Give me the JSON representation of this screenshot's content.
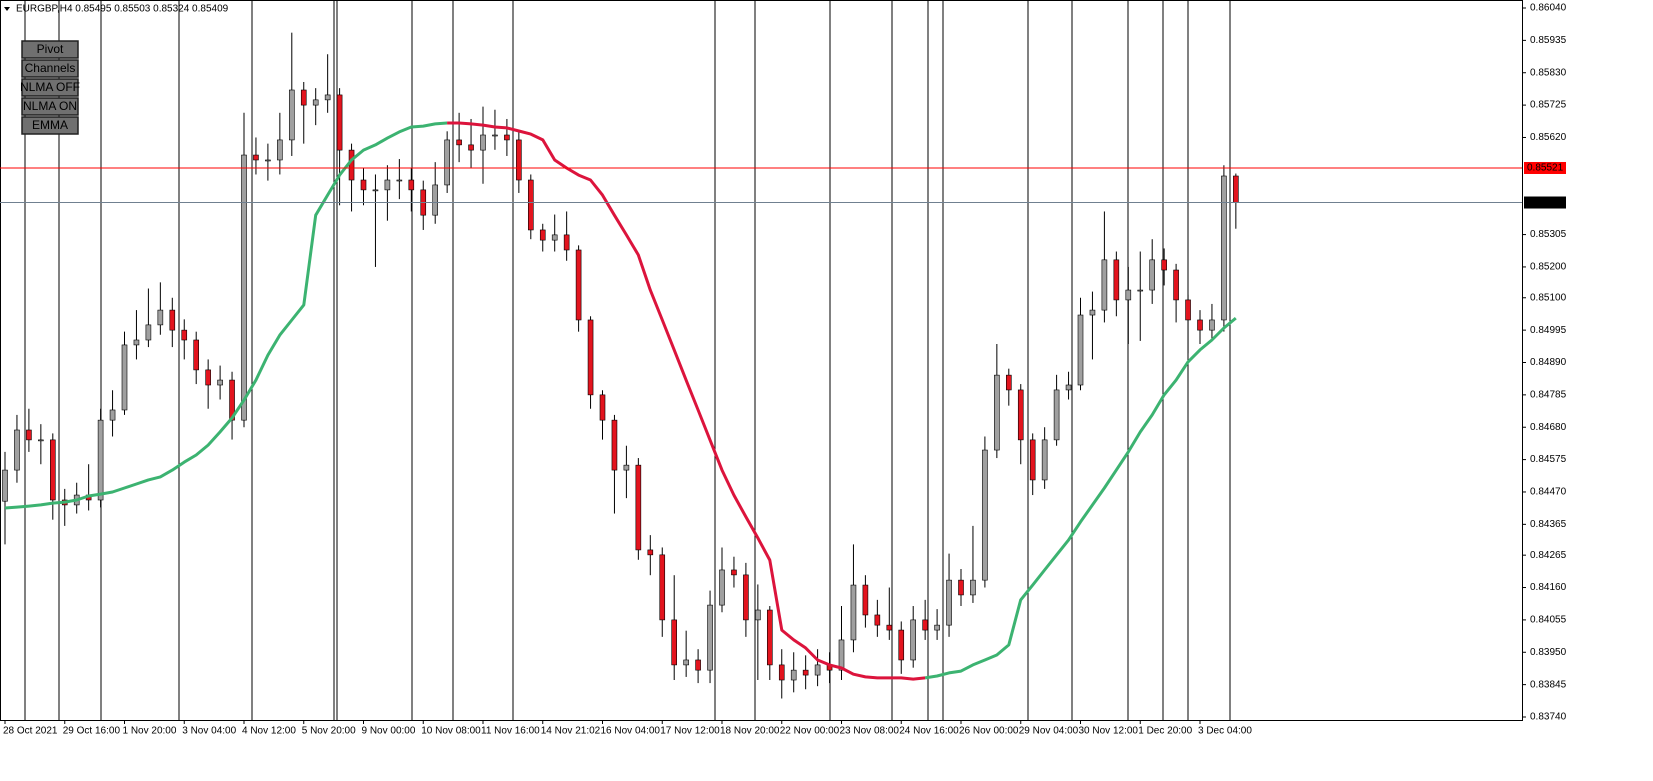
{
  "chart_data": {
    "type": "candlestick",
    "title": "EURGBP,H4 0.85495 0.85503 0.85324 0.85409",
    "categories": [
      "28 Oct 2021",
      null,
      null,
      null,
      null,
      "29 Oct 16:00",
      null,
      null,
      null,
      null,
      "1 Nov 20:00",
      null,
      null,
      null,
      null,
      "3 Nov 04:00",
      null,
      null,
      null,
      null,
      "4 Nov 12:00",
      null,
      null,
      null,
      null,
      "5 Nov 20:00",
      null,
      null,
      null,
      null,
      "9 Nov 00:00",
      null,
      null,
      null,
      null,
      "10 Nov 08:00",
      null,
      null,
      null,
      null,
      "11 Nov 16:00",
      null,
      null,
      null,
      null,
      "14 Nov 21:02",
      null,
      null,
      null,
      null,
      "16 Nov 04:00",
      null,
      null,
      null,
      null,
      "17 Nov 12:00",
      null,
      null,
      null,
      null,
      "18 Nov 20:00",
      null,
      null,
      null,
      null,
      "22 Nov 00:00",
      null,
      null,
      null,
      null,
      "23 Nov 08:00",
      null,
      null,
      null,
      null,
      "24 Nov 16:00",
      null,
      null,
      null,
      null,
      "26 Nov 00:00",
      null,
      null,
      null,
      null,
      "29 Nov 04:00",
      null,
      null,
      null,
      null,
      "30 Nov 12:00",
      null,
      null,
      null,
      null,
      "1 Dec 20:00",
      null,
      null,
      null,
      null,
      "3 Dec 04:00",
      null,
      null,
      null
    ],
    "open": [
      0.8444,
      0.84541,
      0.84671,
      0.84639,
      0.84639,
      0.84444,
      0.84428,
      0.8446,
      0.84444,
      0.84703,
      0.84736,
      0.84947,
      0.84963,
      0.85012,
      0.8506,
      0.84995,
      0.84963,
      0.84866,
      0.84817,
      0.84833,
      0.84703,
      0.85563,
      0.85547,
      0.85547,
      0.85612,
      0.85774,
      0.85725,
      0.85742,
      0.85758,
      0.85579,
      0.85482,
      0.8545,
      0.8545,
      0.85482,
      0.85482,
      0.8545,
      0.85368,
      0.85466,
      0.85612,
      0.85596,
      0.85579,
      0.85628,
      0.85628,
      0.85612,
      0.85482,
      0.8532,
      0.85287,
      0.85304,
      0.85255,
      0.85028,
      0.84785,
      0.84703,
      0.84541,
      0.84557,
      0.84282,
      0.84266,
      0.84055,
      0.83909,
      0.83925,
      0.83892,
      0.84103,
      0.84217,
      0.84201,
      0.84055,
      0.84087,
      0.83909,
      0.8386,
      0.83892,
      0.83876,
      0.83909,
      0.83892,
      0.8399,
      0.84168,
      0.84071,
      0.84038,
      0.84022,
      0.83925,
      0.84055,
      0.84022,
      0.84038,
      0.84184,
      0.84136,
      0.84184,
      0.84606,
      0.84849,
      0.84801,
      0.84639,
      0.84509,
      0.84639,
      0.84801,
      0.84817,
      0.85044,
      0.8506,
      0.85223,
      0.85093,
      0.85125,
      0.85125,
      0.85223,
      0.8519,
      0.85093,
      0.85028,
      0.84995,
      0.85028,
      0.85495
    ],
    "high": [
      0.846,
      0.8472,
      0.8474,
      0.8469,
      0.8466,
      0.8448,
      0.845,
      0.8456,
      0.8474,
      0.848,
      0.8499,
      0.8506,
      0.8513,
      0.8515,
      0.851,
      0.8503,
      0.8499,
      0.849,
      0.8488,
      0.8486,
      0.857,
      0.8562,
      0.856,
      0.857,
      0.8596,
      0.858,
      0.8578,
      0.8589,
      0.8578,
      0.856,
      0.8552,
      0.855,
      0.8553,
      0.8555,
      0.8552,
      0.8548,
      0.8554,
      0.8564,
      0.857,
      0.8568,
      0.8572,
      0.8571,
      0.8568,
      0.8564,
      0.855,
      0.8534,
      0.8537,
      0.8538,
      0.8527,
      0.8504,
      0.848,
      0.8472,
      0.8462,
      0.8458,
      0.8433,
      0.8429,
      0.842,
      0.8402,
      0.8396,
      0.8415,
      0.8429,
      0.8426,
      0.8424,
      0.8417,
      0.841,
      0.8396,
      0.8395,
      0.8394,
      0.8396,
      0.8395,
      0.841,
      0.843,
      0.842,
      0.8412,
      0.8416,
      0.8405,
      0.841,
      0.8412,
      0.8409,
      0.8427,
      0.8422,
      0.8436,
      0.8465,
      0.8495,
      0.8487,
      0.8482,
      0.8466,
      0.8468,
      0.8485,
      0.8486,
      0.851,
      0.8512,
      0.8538,
      0.8525,
      0.852,
      0.8525,
      0.8529,
      0.8526,
      0.8521,
      0.8511,
      0.8506,
      0.8508,
      0.8553,
      0.85503
    ],
    "low": [
      0.843,
      0.845,
      0.846,
      0.8456,
      0.8438,
      0.8436,
      0.844,
      0.8441,
      0.8442,
      0.8465,
      0.8472,
      0.849,
      0.8494,
      0.8498,
      0.8494,
      0.849,
      0.8482,
      0.8474,
      0.8477,
      0.8464,
      0.8468,
      0.855,
      0.8548,
      0.855,
      0.8556,
      0.856,
      0.8566,
      0.857,
      0.854,
      0.8538,
      0.854,
      0.852,
      0.8535,
      0.8542,
      0.8538,
      0.8532,
      0.8534,
      0.8544,
      0.8554,
      0.8552,
      0.8547,
      0.8558,
      0.8556,
      0.8544,
      0.8529,
      0.8525,
      0.8525,
      0.8522,
      0.8499,
      0.8474,
      0.8464,
      0.844,
      0.8445,
      0.8425,
      0.842,
      0.84,
      0.8386,
      0.8387,
      0.8385,
      0.8385,
      0.8408,
      0.8416,
      0.84,
      0.8386,
      0.8386,
      0.838,
      0.8382,
      0.8383,
      0.8384,
      0.8385,
      0.8386,
      0.8395,
      0.8403,
      0.84,
      0.8399,
      0.8388,
      0.839,
      0.8399,
      0.8399,
      0.84,
      0.841,
      0.8411,
      0.8416,
      0.8458,
      0.8475,
      0.8456,
      0.8446,
      0.8448,
      0.8462,
      0.8477,
      0.848,
      0.849,
      0.8502,
      0.8504,
      0.8495,
      0.8496,
      0.8508,
      0.8514,
      0.8502,
      0.8492,
      0.8495,
      0.8496,
      0.8499,
      0.85324
    ],
    "close": [
      0.84541,
      0.84671,
      0.84639,
      0.84639,
      0.84444,
      0.84428,
      0.8446,
      0.84444,
      0.84703,
      0.84736,
      0.84947,
      0.84963,
      0.85012,
      0.8506,
      0.84995,
      0.84963,
      0.84866,
      0.84817,
      0.84833,
      0.84703,
      0.85563,
      0.85547,
      0.85547,
      0.85612,
      0.85774,
      0.85725,
      0.85742,
      0.85758,
      0.85579,
      0.85482,
      0.8545,
      0.8545,
      0.85482,
      0.85482,
      0.8545,
      0.85368,
      0.85466,
      0.85612,
      0.85596,
      0.85579,
      0.85628,
      0.85628,
      0.85612,
      0.85482,
      0.8532,
      0.85287,
      0.85304,
      0.85255,
      0.85028,
      0.84785,
      0.84703,
      0.84541,
      0.84557,
      0.84282,
      0.84266,
      0.84055,
      0.83909,
      0.83925,
      0.83892,
      0.84103,
      0.84217,
      0.84201,
      0.84055,
      0.84087,
      0.83909,
      0.8386,
      0.83892,
      0.83876,
      0.83909,
      0.83892,
      0.8399,
      0.84168,
      0.84071,
      0.84038,
      0.84022,
      0.83925,
      0.84055,
      0.84022,
      0.84038,
      0.84184,
      0.84136,
      0.84184,
      0.84606,
      0.84849,
      0.84801,
      0.84639,
      0.84509,
      0.84639,
      0.84801,
      0.84817,
      0.85044,
      0.8506,
      0.85223,
      0.85093,
      0.85125,
      0.85125,
      0.85223,
      0.8519,
      0.85093,
      0.85028,
      0.84995,
      0.85028,
      0.85495,
      0.85409
    ],
    "up_color": "#a0a0a0",
    "down_color": "#e3141e",
    "series": [
      {
        "color": "#3cb371",
        "values": [
          0.84418,
          0.84421,
          0.84424,
          0.84428,
          0.84434,
          0.84437,
          0.84444,
          0.84457,
          0.84463,
          0.8447,
          0.84483,
          0.84496,
          0.84509,
          0.84519,
          0.84541,
          0.84567,
          0.8459,
          0.84622,
          0.84665,
          0.8471,
          0.84768,
          0.84833,
          0.84914,
          0.84979,
          0.85028,
          0.85077,
          0.85368,
          0.85433,
          0.85498,
          0.85547,
          0.85579,
          0.85596,
          0.85618,
          0.85638,
          0.85654,
          0.85657,
          0.85664,
          0.85667,
          null,
          null,
          null,
          null,
          null,
          null,
          null,
          null,
          null,
          null,
          null,
          null,
          null,
          null,
          null,
          null,
          null,
          null,
          null,
          null,
          null,
          null,
          null,
          null,
          null,
          null,
          null,
          null,
          null,
          null,
          null,
          null,
          null,
          null,
          null,
          null,
          null,
          null,
          null,
          0.83867,
          0.83873,
          0.83883,
          0.83889,
          0.83909,
          0.83925,
          0.83941,
          0.83974,
          0.8412,
          0.84168,
          0.84217,
          0.84266,
          0.84314,
          0.84373,
          0.84428,
          0.84483,
          0.84541,
          0.846,
          0.84665,
          0.8472,
          0.84785,
          0.84833,
          0.84892,
          0.84931,
          0.84963,
          0.85002,
          0.85034
        ]
      },
      {
        "color": "#dc143c",
        "values": [
          null,
          null,
          null,
          null,
          null,
          null,
          null,
          null,
          null,
          null,
          null,
          null,
          null,
          null,
          null,
          null,
          null,
          null,
          null,
          null,
          null,
          null,
          null,
          null,
          null,
          null,
          null,
          null,
          null,
          null,
          null,
          null,
          null,
          null,
          null,
          null,
          null,
          0.85667,
          0.85667,
          0.85664,
          0.8566,
          0.85654,
          0.85651,
          0.85641,
          0.85631,
          0.85612,
          0.85547,
          0.85521,
          0.85498,
          0.85482,
          0.85433,
          0.85368,
          0.85304,
          0.85239,
          0.85125,
          0.85028,
          0.84931,
          0.84833,
          0.84736,
          0.84639,
          0.84541,
          0.8446,
          0.84389,
          0.84321,
          0.84249,
          0.84022,
          0.8399,
          0.83964,
          0.83925,
          0.83909,
          0.83899,
          0.83879,
          0.8387,
          0.83867,
          0.83867,
          0.83867,
          0.83863,
          0.83867,
          null,
          null,
          null,
          null,
          null,
          null,
          null,
          null,
          null,
          null,
          null,
          null,
          null,
          null,
          null,
          null,
          null,
          null,
          null,
          null,
          null,
          null,
          null,
          null,
          null,
          null
        ]
      }
    ],
    "price_lines": [
      {
        "value": 0.85521,
        "color": "#ff0000"
      },
      {
        "value": 0.85409,
        "color": "#708090"
      }
    ],
    "ylim": [
      0.8374,
      0.8604
    ],
    "yticks": [
      {
        "value": 0.8604,
        "label": "0.86040"
      },
      0.85935,
      {
        "value": 0.8583,
        "label": "0.85830"
      },
      0.85725,
      {
        "value": 0.8562,
        "label": "0.85620"
      },
      0.85305,
      {
        "value": 0.852,
        "label": "0.85200"
      },
      {
        "value": 0.851,
        "label": "0.85100"
      },
      0.84995,
      {
        "value": 0.8489,
        "label": "0.84890"
      },
      0.84785,
      {
        "value": 0.8468,
        "label": "0.84680"
      },
      0.84575,
      {
        "value": 0.8447,
        "label": "0.84470"
      },
      0.84365,
      0.84265,
      {
        "value": 0.8416,
        "label": "0.84160"
      },
      0.84055,
      {
        "value": 0.8395,
        "label": "0.83950"
      },
      0.83845,
      {
        "value": 0.8374,
        "label": "0.83740"
      }
    ]
  },
  "buttons": [
    {
      "label": "Pivot",
      "color": "#ff0000"
    },
    {
      "label": "Channels",
      "color": "#ffffff"
    },
    {
      "label": "NLMA OFF",
      "color": "#ff0000"
    },
    {
      "label": "NLMA ON",
      "color": "#00ff00"
    },
    {
      "label": "EMMA",
      "color": "#ff0000"
    }
  ]
}
